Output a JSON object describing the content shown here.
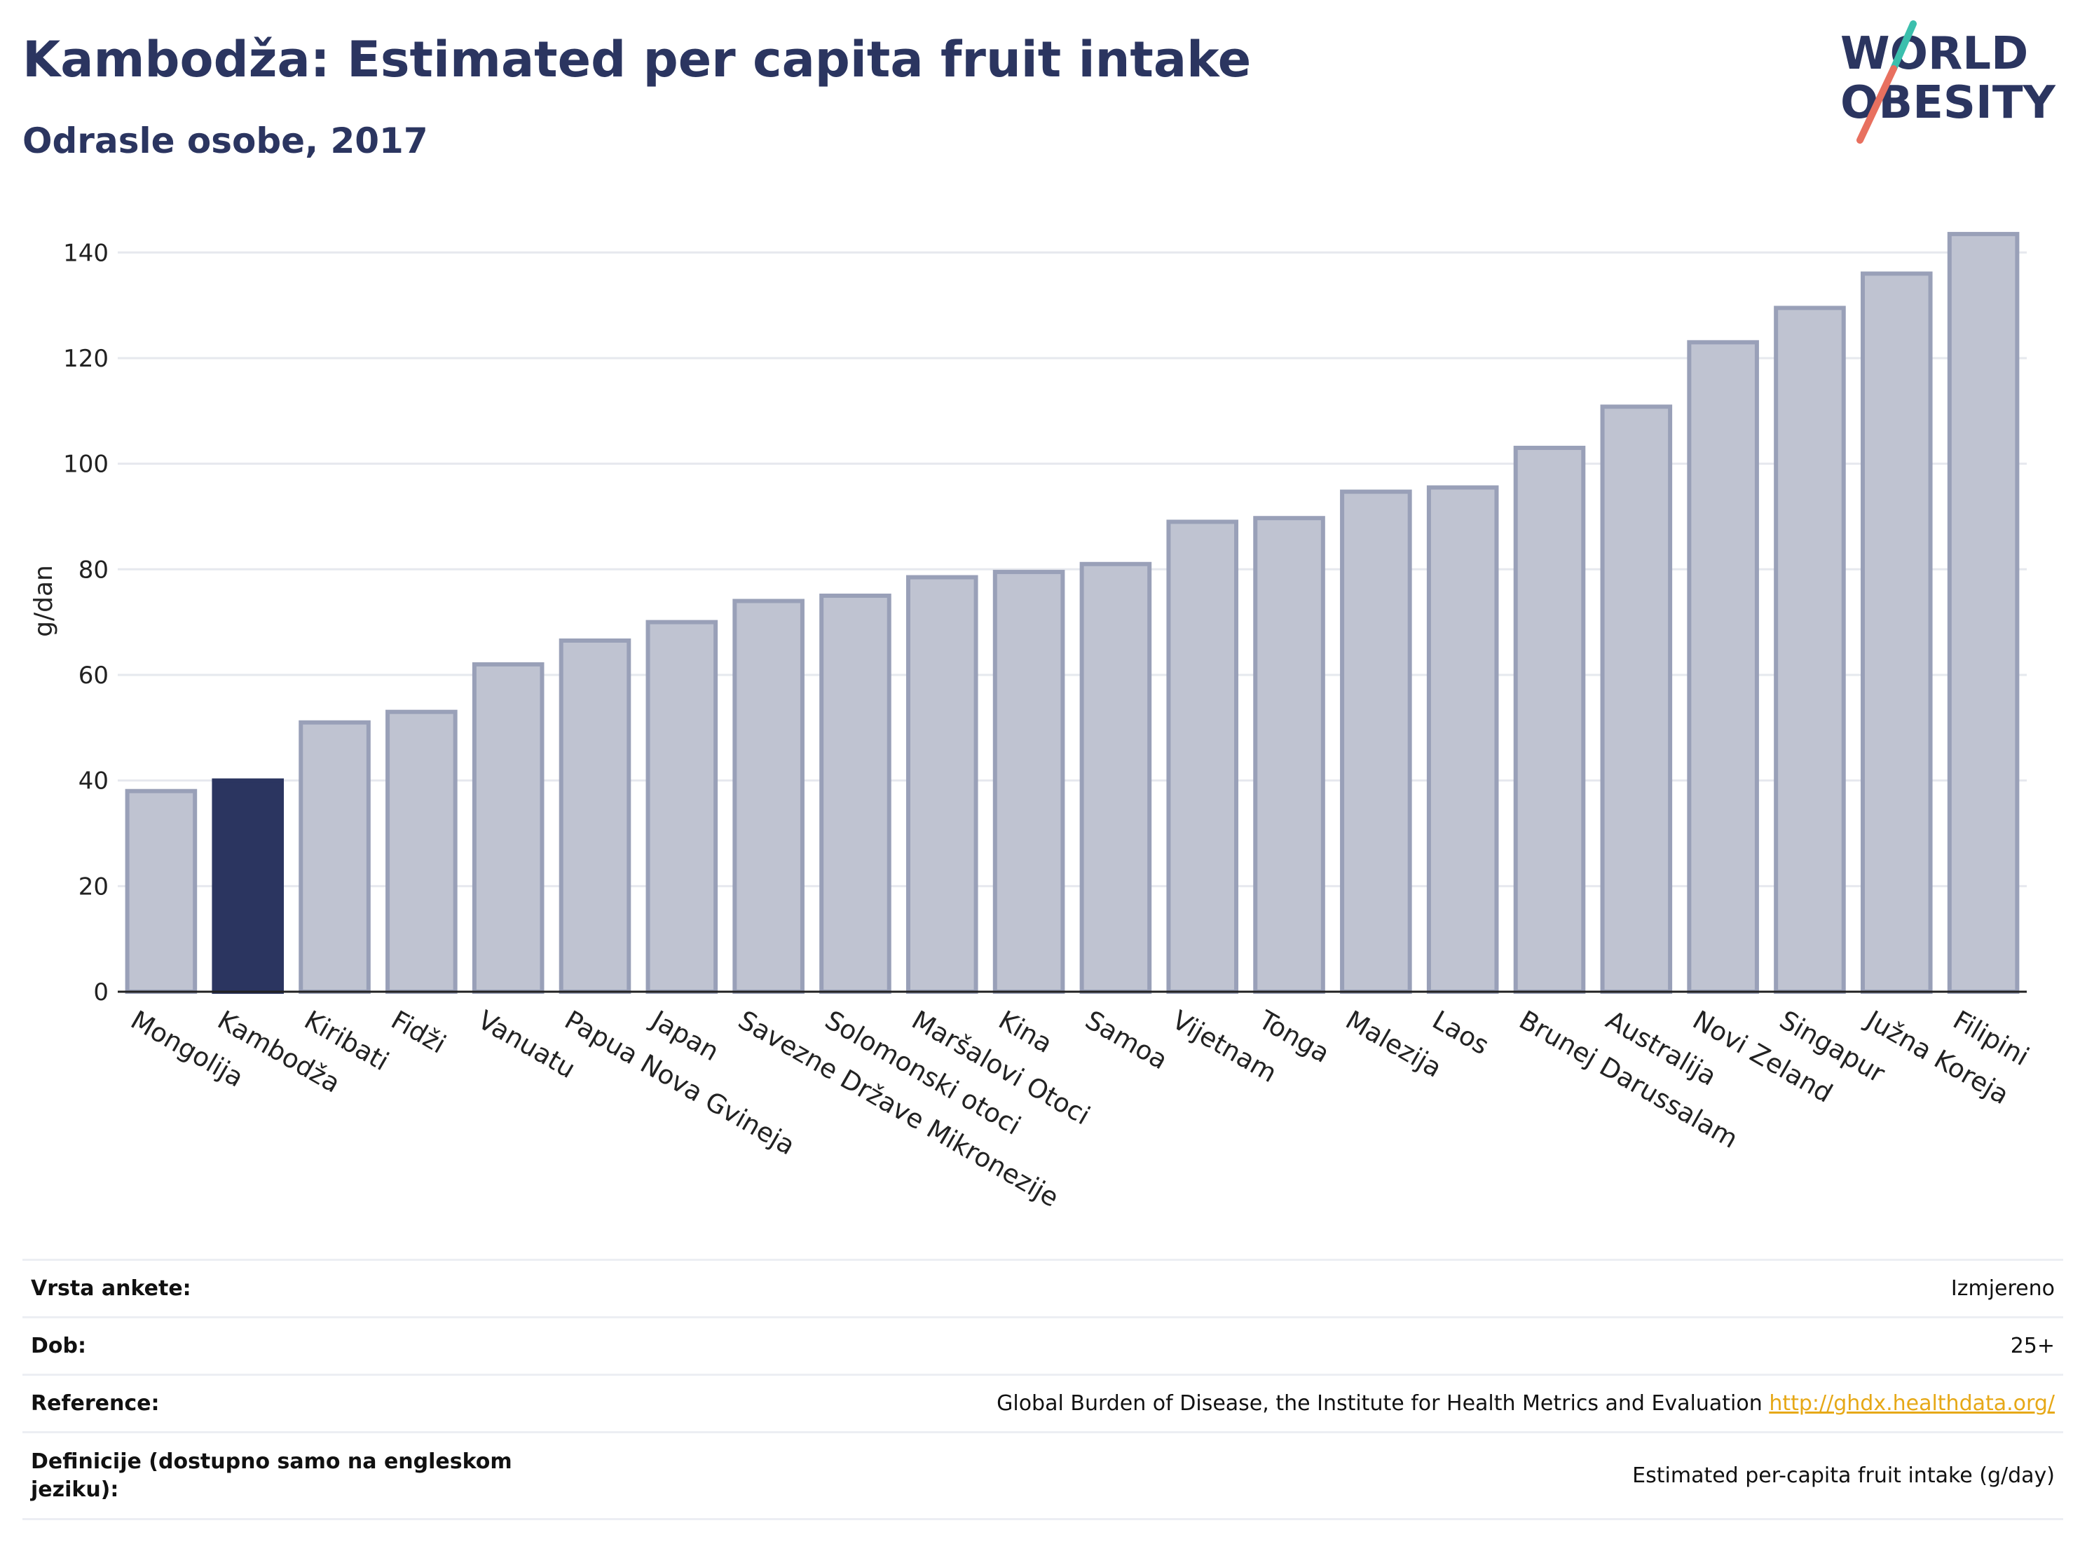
{
  "header": {
    "title": "Kambodža: Estimated per capita fruit intake",
    "subtitle": "Odrasle osobe, 2017"
  },
  "logo": {
    "line1": "WORLD",
    "line2": "OBESITY",
    "accent_teal": "#3bbfad",
    "accent_coral": "#e8705f"
  },
  "chart_data": {
    "type": "bar",
    "ylabel": "g/dan",
    "ylim": [
      0,
      148
    ],
    "yticks": [
      0,
      20,
      40,
      60,
      80,
      100,
      120,
      140
    ],
    "grid": true,
    "highlight": "Kambodža",
    "colors": {
      "bar": "#bfc3d1",
      "bar_edge": "#99a0b8",
      "highlight": "#2b3560"
    },
    "categories": [
      "Mongolija",
      "Kambodža",
      "Kiribati",
      "Fidži",
      "Vanuatu",
      "Papua Nova Gvineja",
      "Japan",
      "Savezne Države Mikronezije",
      "Solomonski otoci",
      "Maršalovi Otoci",
      "Kina",
      "Samoa",
      "Vijetnam",
      "Tonga",
      "Malezija",
      "Laos",
      "Brunej Darussalam",
      "Australija",
      "Novi Zeland",
      "Singapur",
      "Južna Koreja",
      "Filipini"
    ],
    "values": [
      38,
      40,
      51,
      53,
      62,
      66.5,
      70,
      74,
      75,
      78.5,
      79.5,
      81,
      89,
      89.7,
      94.7,
      95.5,
      103,
      110.8,
      123,
      129.5,
      136,
      143.5
    ]
  },
  "info": {
    "survey_label": "Vrsta ankete:",
    "survey_value": "Izmjereno",
    "age_label": "Dob:",
    "age_value": "25+",
    "ref_label": "Reference:",
    "ref_value": "Global Burden of Disease, the Institute for Health Metrics and Evaluation",
    "ref_link": "http://ghdx.healthdata.org/",
    "def_label": "Definicije (dostupno samo na engleskom jeziku):",
    "def_value": "Estimated per-capita fruit intake (g/day)"
  }
}
